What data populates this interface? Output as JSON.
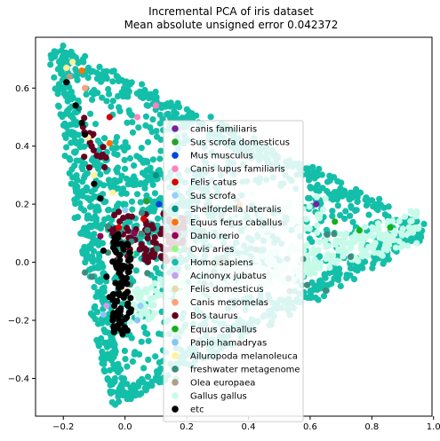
{
  "chart_data": {
    "type": "scatter",
    "title": "Incremental PCA of iris dataset",
    "subtitle": "Mean absolute unsigned error 0.042372",
    "xlabel": "",
    "ylabel": "",
    "xlim": [
      -0.29,
      0.995
    ],
    "ylim": [
      -0.53,
      0.775
    ],
    "xticks": [
      -0.2,
      0.0,
      0.2,
      0.4,
      0.6,
      0.8,
      1.0
    ],
    "xtick_labels": [
      "−0.2",
      "0.0",
      "0.2",
      "0.4",
      "0.6",
      "0.8",
      "1.0"
    ],
    "yticks": [
      -0.4,
      -0.2,
      0.0,
      0.2,
      0.4,
      0.6
    ],
    "ytick_labels": [
      "−0.4",
      "−0.2",
      "0.0",
      "0.2",
      "0.4",
      "0.6"
    ],
    "grid": false,
    "legend_position": "center",
    "series": [
      {
        "name": "canis familiaris",
        "color": "#7b1fa2",
        "points": [
          [
            0.62,
            0.2
          ]
        ]
      },
      {
        "name": "Sus scrofa domesticus",
        "color": "#2ca02c",
        "points": [
          [
            0.07,
            0.21
          ],
          [
            0.3,
            0.0
          ]
        ]
      },
      {
        "name": "Mus musculus",
        "color": "#0343df",
        "points": [
          [
            0.11,
            0.2
          ]
        ]
      },
      {
        "name": "Canis lupus familiaris",
        "color": "#ff81c0",
        "points": [
          [
            0.1,
            0.54
          ],
          [
            0.04,
            0.5
          ]
        ]
      },
      {
        "name": "Felis catus",
        "color": "#d60000",
        "points": [
          [
            -0.05,
            0.5
          ],
          [
            0.06,
            0.15
          ],
          [
            -0.02,
            0.12
          ]
        ]
      },
      {
        "name": "Sus scrofa",
        "color": "#95d0fc",
        "points": [
          [
            0.0,
            0.18
          ],
          [
            0.05,
            -0.15
          ]
        ]
      },
      {
        "name": "Shelfordella lateralis",
        "color": "#029386",
        "points": [
          [
            -0.15,
            0.53
          ],
          [
            0.1,
            0.3
          ]
        ]
      },
      {
        "name": "Equus ferus caballus",
        "color": "#f97306",
        "points": [
          [
            -0.14,
            0.66
          ],
          [
            -0.05,
            0.41
          ],
          [
            0.37,
            0.2
          ]
        ]
      },
      {
        "name": "Danio rerio",
        "color": "#960056",
        "points": [
          [
            -0.08,
            0.09
          ],
          [
            0.03,
            0.1
          ]
        ]
      },
      {
        "name": "Ovis aries",
        "color": "#96f97b",
        "points": [
          [
            0.02,
            0.03
          ]
        ]
      },
      {
        "name": "Homo sapiens",
        "color": "#13bfa8",
        "points": []
      },
      {
        "name": "Acinonyx jubatus",
        "color": "#c79fef",
        "points": [
          [
            -0.06,
            -0.15
          ]
        ]
      },
      {
        "name": "Felis domesticus",
        "color": "#e6daa6",
        "points": [
          [
            0.0,
            -0.1
          ]
        ]
      },
      {
        "name": "Canis mesomelas",
        "color": "#ffa07a",
        "points": [
          [
            -0.13,
            0.6
          ]
        ]
      },
      {
        "name": "Bos taurus",
        "color": "#650021",
        "points": []
      },
      {
        "name": "Equus caballus",
        "color": "#15b01a",
        "points": [
          [
            0.68,
            0.14
          ],
          [
            0.76,
            0.11
          ],
          [
            0.86,
            0.12
          ]
        ]
      },
      {
        "name": "Papio hamadryas",
        "color": "#89c4f4",
        "points": [
          [
            -0.07,
            -0.18
          ],
          [
            0.04,
            -0.2
          ]
        ]
      },
      {
        "name": "Ailuropoda melanoleuca",
        "color": "#fff39a",
        "points": [
          [
            -0.19,
            0.67
          ],
          [
            -0.17,
            0.69
          ],
          [
            -0.1,
            0.3
          ],
          [
            -0.04,
            0.24
          ],
          [
            -0.12,
            0.43
          ]
        ]
      },
      {
        "name": "freshwater metagenome",
        "color": "#3d8c7e",
        "points": []
      },
      {
        "name": "Olea europaea",
        "color": "#b0a08a",
        "points": [
          [
            -0.18,
            0.64
          ]
        ]
      },
      {
        "name": "Gallus gallus",
        "color": "#c6fbe9",
        "points": []
      },
      {
        "name": "etc",
        "color": "#000000",
        "points": [
          [
            -0.19,
            0.62
          ],
          [
            -0.16,
            0.54
          ],
          [
            -0.14,
            0.48
          ],
          [
            -0.13,
            0.44
          ],
          [
            -0.1,
            0.27
          ],
          [
            -0.08,
            0.22
          ],
          [
            -0.07,
            0.04
          ],
          [
            -0.06,
            -0.05
          ],
          [
            -0.05,
            -0.12
          ],
          [
            -0.04,
            -0.2
          ]
        ]
      }
    ]
  }
}
